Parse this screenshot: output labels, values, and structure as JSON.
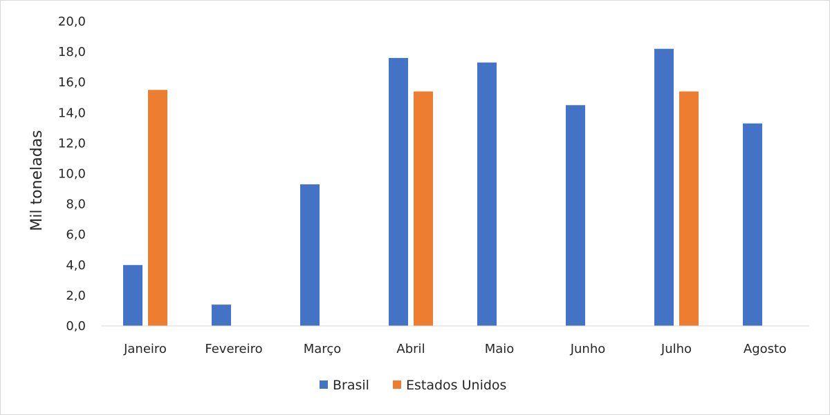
{
  "chart_data": {
    "type": "bar",
    "categories": [
      "Janeiro",
      "Fevereiro",
      "Março",
      "Abril",
      "Maio",
      "Junho",
      "Julho",
      "Agosto"
    ],
    "series": [
      {
        "name": "Brasil",
        "color": "#4472C4",
        "values": [
          4.0,
          1.4,
          9.3,
          17.6,
          17.3,
          14.5,
          18.2,
          13.3
        ]
      },
      {
        "name": "Estados Unidos",
        "color": "#ED7D31",
        "values": [
          15.5,
          null,
          null,
          15.4,
          null,
          null,
          15.4,
          null
        ]
      }
    ],
    "ylabel": "Mil toneladas",
    "xlabel": "",
    "ylim": [
      0,
      20
    ],
    "yticks": [
      "0,0",
      "2,0",
      "4,0",
      "6,0",
      "8,0",
      "10,0",
      "12,0",
      "14,0",
      "16,0",
      "18,0",
      "20,0"
    ],
    "grid": false,
    "legend_position": "bottom"
  }
}
